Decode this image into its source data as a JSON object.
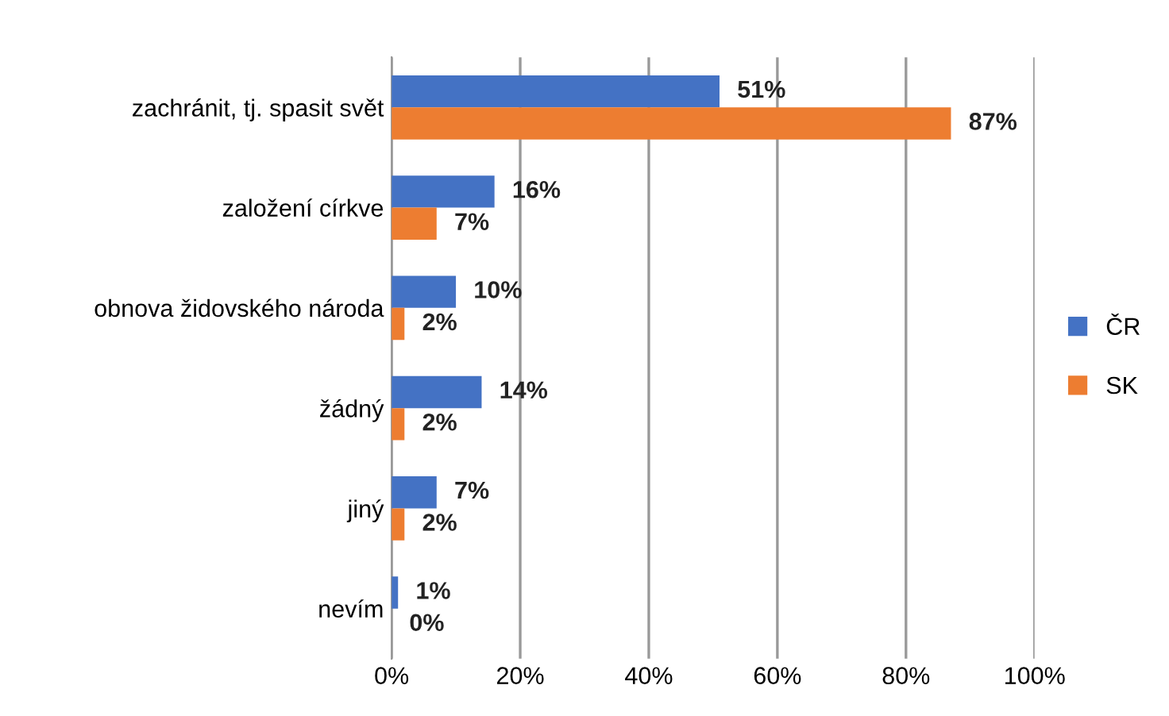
{
  "chart_data": {
    "type": "bar",
    "orientation": "horizontal",
    "categories": [
      "zachránit, tj. spasit svět",
      "založení církve",
      "obnova židovského národa",
      "žádný",
      "jiný",
      "nevím"
    ],
    "series": [
      {
        "name": "ČR",
        "color": "#4472c4",
        "values": [
          51,
          16,
          10,
          14,
          7,
          1
        ]
      },
      {
        "name": "SK",
        "color": "#ed7d31",
        "values": [
          87,
          7,
          2,
          2,
          2,
          0
        ]
      }
    ],
    "xlim": [
      0,
      100
    ],
    "xticks": [
      {
        "value": 0,
        "label": "0%"
      },
      {
        "value": 20,
        "label": "20%"
      },
      {
        "value": 40,
        "label": "40%"
      },
      {
        "value": 60,
        "label": "60%"
      },
      {
        "value": 80,
        "label": "80%"
      },
      {
        "value": 100,
        "label": "100%"
      }
    ],
    "value_labels": [
      [
        "51%",
        "16%",
        "10%",
        "14%",
        "7%",
        "1%"
      ],
      [
        "87%",
        "7%",
        "2%",
        "2%",
        "2%",
        "0%"
      ]
    ],
    "grid": "x",
    "legend": "right"
  }
}
